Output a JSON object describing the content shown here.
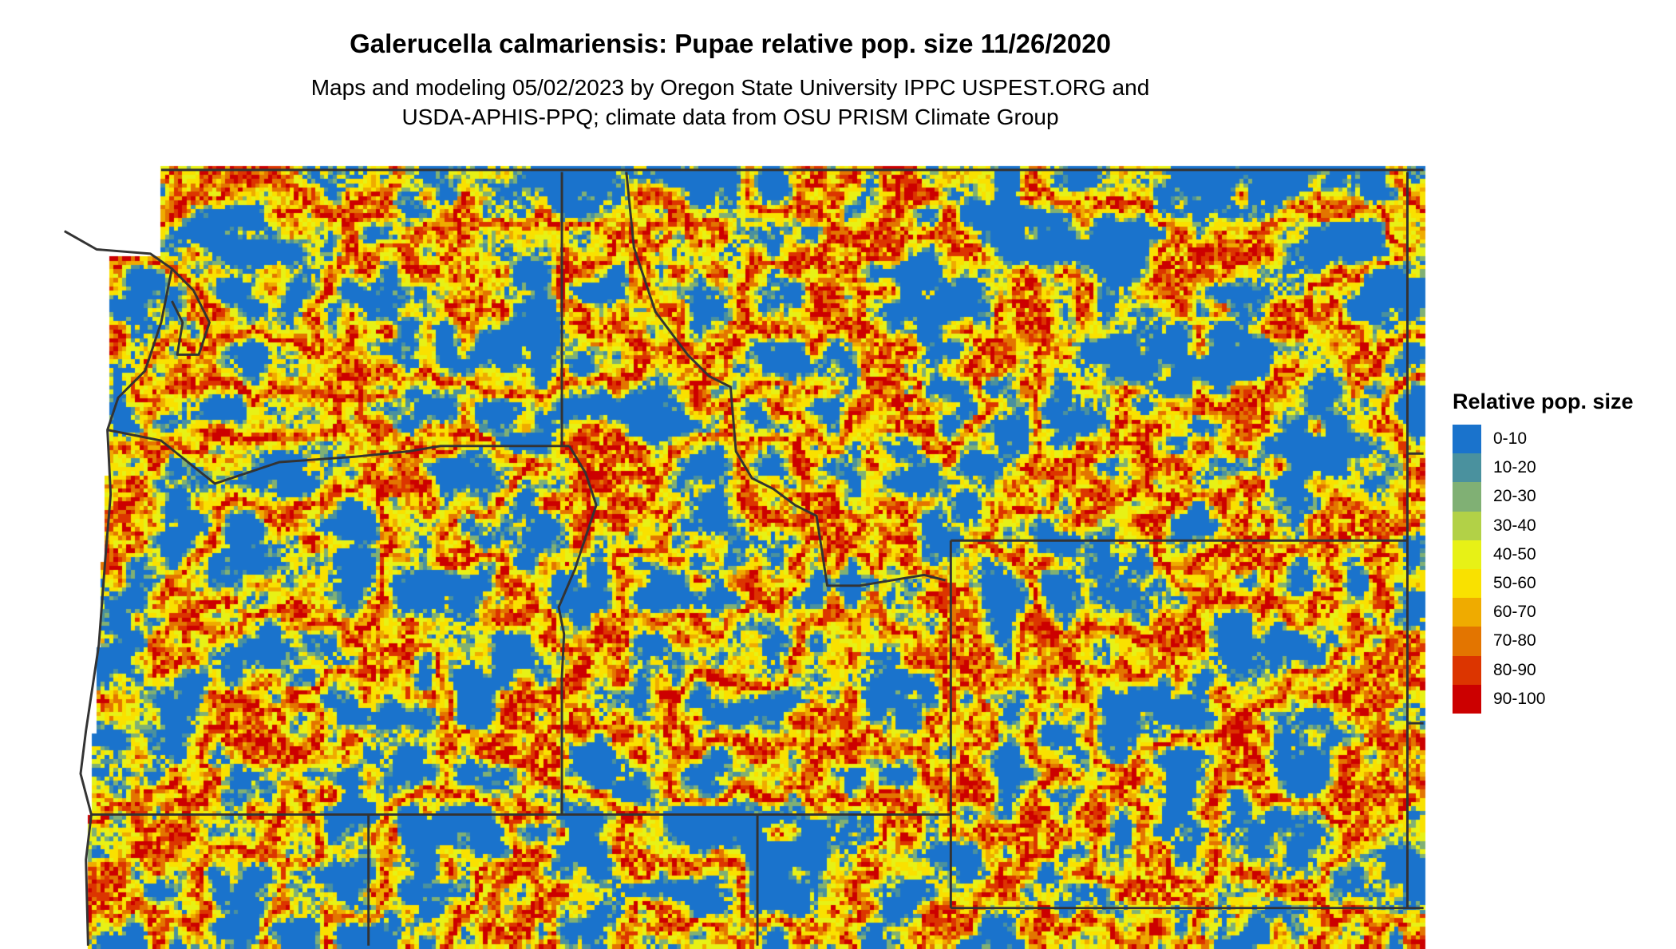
{
  "header": {
    "title": "Galerucella calmariensis: Pupae relative pop. size 11/26/2020",
    "subtitle_line1": "Maps and modeling 05/02/2023 by Oregon State University IPPC USPEST.ORG and",
    "subtitle_line2": "USDA-APHIS-PPQ; climate data from OSU PRISM Climate Group"
  },
  "chart_data": {
    "type": "heatmap",
    "title": "Galerucella calmariensis: Pupae relative pop. size 11/26/2020",
    "legend_title": "Relative pop. size",
    "legend_placement": "right",
    "categories": [
      "0-10",
      "10-20",
      "20-30",
      "30-40",
      "40-50",
      "50-60",
      "60-70",
      "70-80",
      "80-90",
      "90-100"
    ],
    "colors": [
      "#1a73cc",
      "#4a919e",
      "#80b074",
      "#b2d147",
      "#e7f116",
      "#f9e100",
      "#efab00",
      "#e37500",
      "#dc3500",
      "#cc0000"
    ],
    "border_color": "#333333"
  }
}
